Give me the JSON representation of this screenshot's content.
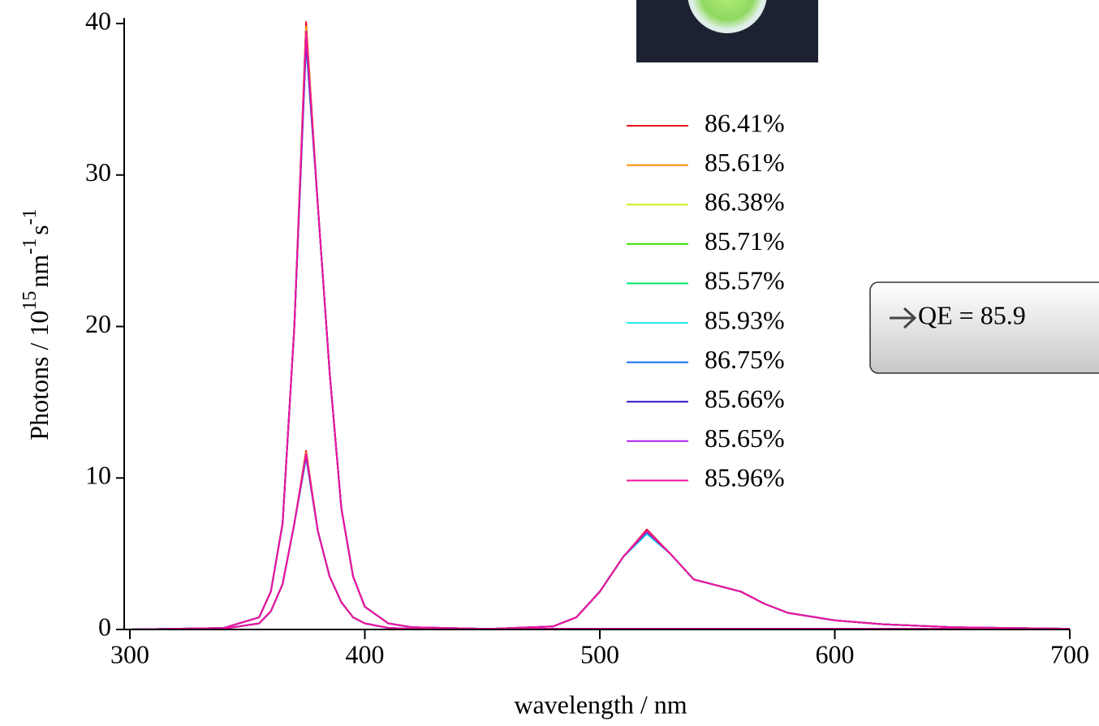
{
  "chart_data": {
    "type": "line",
    "xlabel": "wavelength / nm",
    "ylabel": [
      "Photons / 10",
      "15",
      "nm",
      "-1",
      "s",
      "-1"
    ],
    "annotation": "QE = 85.9",
    "x": [
      300,
      340,
      355,
      360,
      365,
      370,
      375,
      380,
      385,
      390,
      395,
      400,
      410,
      420,
      450,
      480,
      490,
      500,
      510,
      520,
      530,
      540,
      550,
      560,
      570,
      580,
      600,
      620,
      650,
      700
    ],
    "xlim": [
      300,
      700
    ],
    "xticks": [
      300,
      400,
      500,
      600,
      700
    ],
    "ylim": [
      0,
      40
    ],
    "yticks": [
      0,
      10,
      20,
      30,
      40
    ],
    "series": [
      {
        "name": "86.41%",
        "color": "#e8001c",
        "reference": [
          0,
          0.1,
          0.8,
          2.5,
          7,
          20,
          40.1,
          28,
          17,
          8,
          3.5,
          1.5,
          0.4,
          0.15,
          0.05,
          0.05,
          0.05,
          0.05,
          0.05,
          0.05,
          0.05,
          0.05,
          0.05,
          0.05,
          0.05,
          0.05,
          0.05,
          0.05,
          0.05,
          0.05
        ],
        "values": [
          0,
          0.05,
          0.4,
          1.2,
          3,
          7,
          11.8,
          6.5,
          3.5,
          1.8,
          0.8,
          0.4,
          0.1,
          0.05,
          0.02,
          0.2,
          0.8,
          2.5,
          4.8,
          6.6,
          5,
          3.3,
          2.9,
          2.5,
          1.7,
          1.1,
          0.6,
          0.35,
          0.15,
          0.05
        ]
      },
      {
        "name": "85.61%",
        "color": "#ff8c00",
        "reference": [
          0,
          0.1,
          0.8,
          2.5,
          7,
          20,
          39.8,
          28,
          17,
          8,
          3.5,
          1.5,
          0.4,
          0.15,
          0.05,
          0.05,
          0.05,
          0.05,
          0.05,
          0.05,
          0.05,
          0.05,
          0.05,
          0.05,
          0.05,
          0.05,
          0.05,
          0.05,
          0.05,
          0.05
        ],
        "values": [
          0,
          0.05,
          0.4,
          1.2,
          3,
          7,
          11.7,
          6.5,
          3.5,
          1.8,
          0.8,
          0.4,
          0.1,
          0.05,
          0.02,
          0.2,
          0.8,
          2.5,
          4.8,
          6.5,
          5,
          3.3,
          2.9,
          2.5,
          1.7,
          1.1,
          0.6,
          0.35,
          0.15,
          0.05
        ]
      },
      {
        "name": "86.38%",
        "color": "#c8f020",
        "reference": [
          0,
          0.1,
          0.8,
          2.5,
          7,
          20,
          39.6,
          28,
          17,
          8,
          3.5,
          1.5,
          0.4,
          0.15,
          0.05,
          0.05,
          0.05,
          0.05,
          0.05,
          0.05,
          0.05,
          0.05,
          0.05,
          0.05,
          0.05,
          0.05,
          0.05,
          0.05,
          0.05,
          0.05
        ],
        "values": [
          0,
          0.05,
          0.4,
          1.2,
          3,
          7,
          11.6,
          6.5,
          3.5,
          1.8,
          0.8,
          0.4,
          0.1,
          0.05,
          0.02,
          0.2,
          0.8,
          2.5,
          4.8,
          6.5,
          5,
          3.3,
          2.9,
          2.5,
          1.7,
          1.1,
          0.6,
          0.35,
          0.15,
          0.05
        ]
      },
      {
        "name": "85.71%",
        "color": "#33e000",
        "reference": [
          0,
          0.1,
          0.8,
          2.5,
          7,
          20,
          39.4,
          28,
          17,
          8,
          3.5,
          1.5,
          0.4,
          0.15,
          0.05,
          0.05,
          0.05,
          0.05,
          0.05,
          0.05,
          0.05,
          0.05,
          0.05,
          0.05,
          0.05,
          0.05,
          0.05,
          0.05,
          0.05,
          0.05
        ],
        "values": [
          0,
          0.05,
          0.4,
          1.2,
          3,
          7,
          11.6,
          6.5,
          3.5,
          1.8,
          0.8,
          0.4,
          0.1,
          0.05,
          0.02,
          0.2,
          0.8,
          2.5,
          4.8,
          6.5,
          5,
          3.3,
          2.9,
          2.5,
          1.7,
          1.1,
          0.6,
          0.35,
          0.15,
          0.05
        ]
      },
      {
        "name": "85.57%",
        "color": "#00e66b",
        "reference": [
          0,
          0.1,
          0.8,
          2.5,
          7,
          20,
          39.2,
          28,
          17,
          8,
          3.5,
          1.5,
          0.4,
          0.15,
          0.05,
          0.05,
          0.05,
          0.05,
          0.05,
          0.05,
          0.05,
          0.05,
          0.05,
          0.05,
          0.05,
          0.05,
          0.05,
          0.05,
          0.05,
          0.05
        ],
        "values": [
          0,
          0.05,
          0.4,
          1.2,
          3,
          7,
          11.5,
          6.5,
          3.5,
          1.8,
          0.8,
          0.4,
          0.1,
          0.05,
          0.02,
          0.2,
          0.8,
          2.5,
          4.8,
          6.4,
          5,
          3.3,
          2.9,
          2.5,
          1.7,
          1.1,
          0.6,
          0.35,
          0.15,
          0.05
        ]
      },
      {
        "name": "85.93%",
        "color": "#22e8f0",
        "reference": [
          0,
          0.1,
          0.8,
          2.5,
          7,
          20,
          38.6,
          28,
          17,
          8,
          3.5,
          1.5,
          0.4,
          0.15,
          0.05,
          0.05,
          0.05,
          0.05,
          0.05,
          0.05,
          0.05,
          0.05,
          0.05,
          0.05,
          0.05,
          0.05,
          0.05,
          0.05,
          0.05,
          0.05
        ],
        "values": [
          0,
          0.05,
          0.4,
          1.2,
          3,
          7,
          11.3,
          6.5,
          3.5,
          1.8,
          0.8,
          0.4,
          0.1,
          0.05,
          0.02,
          0.2,
          0.8,
          2.5,
          4.8,
          6.3,
          5,
          3.3,
          2.9,
          2.5,
          1.7,
          1.1,
          0.6,
          0.35,
          0.15,
          0.05
        ]
      },
      {
        "name": "86.75%",
        "color": "#1a6cf0",
        "reference": [
          0,
          0.1,
          0.8,
          2.5,
          7,
          20,
          38.8,
          28,
          17,
          8,
          3.5,
          1.5,
          0.4,
          0.15,
          0.05,
          0.05,
          0.05,
          0.05,
          0.05,
          0.05,
          0.05,
          0.05,
          0.05,
          0.05,
          0.05,
          0.05,
          0.05,
          0.05,
          0.05,
          0.05
        ],
        "values": [
          0,
          0.05,
          0.4,
          1.2,
          3,
          7,
          11.4,
          6.5,
          3.5,
          1.8,
          0.8,
          0.4,
          0.1,
          0.05,
          0.02,
          0.2,
          0.8,
          2.5,
          4.8,
          6.4,
          5,
          3.3,
          2.9,
          2.5,
          1.7,
          1.1,
          0.6,
          0.35,
          0.15,
          0.05
        ]
      },
      {
        "name": "85.66%",
        "color": "#3010c0",
        "reference": [
          0,
          0.1,
          0.8,
          2.5,
          7,
          20,
          39.0,
          28,
          17,
          8,
          3.5,
          1.5,
          0.4,
          0.15,
          0.05,
          0.05,
          0.05,
          0.05,
          0.05,
          0.05,
          0.05,
          0.05,
          0.05,
          0.05,
          0.05,
          0.05,
          0.05,
          0.05,
          0.05,
          0.05
        ],
        "values": [
          0,
          0.05,
          0.4,
          1.2,
          3,
          7,
          11.5,
          6.5,
          3.5,
          1.8,
          0.8,
          0.4,
          0.1,
          0.05,
          0.02,
          0.2,
          0.8,
          2.5,
          4.8,
          6.5,
          5,
          3.3,
          2.9,
          2.5,
          1.7,
          1.1,
          0.6,
          0.35,
          0.15,
          0.05
        ]
      },
      {
        "name": "85.65%",
        "color": "#b020f0",
        "reference": [
          0,
          0.1,
          0.8,
          2.5,
          7,
          20,
          39.3,
          28,
          17,
          8,
          3.5,
          1.5,
          0.4,
          0.15,
          0.05,
          0.05,
          0.05,
          0.05,
          0.05,
          0.05,
          0.05,
          0.05,
          0.05,
          0.05,
          0.05,
          0.05,
          0.05,
          0.05,
          0.05,
          0.05
        ],
        "values": [
          0,
          0.05,
          0.4,
          1.2,
          3,
          7,
          11.5,
          6.5,
          3.5,
          1.8,
          0.8,
          0.4,
          0.1,
          0.05,
          0.02,
          0.2,
          0.8,
          2.5,
          4.8,
          6.5,
          5,
          3.3,
          2.9,
          2.5,
          1.7,
          1.1,
          0.6,
          0.35,
          0.15,
          0.05
        ]
      },
      {
        "name": "85.96%",
        "color": "#f0149a",
        "reference": [
          0,
          0.1,
          0.8,
          2.5,
          7,
          20,
          39.5,
          28,
          17,
          8,
          3.5,
          1.5,
          0.4,
          0.15,
          0.05,
          0.05,
          0.05,
          0.05,
          0.05,
          0.05,
          0.05,
          0.05,
          0.05,
          0.05,
          0.05,
          0.05,
          0.05,
          0.05,
          0.05,
          0.05
        ],
        "values": [
          0,
          0.05,
          0.4,
          1.2,
          3,
          7,
          11.6,
          6.5,
          3.5,
          1.8,
          0.8,
          0.4,
          0.1,
          0.05,
          0.02,
          0.2,
          0.8,
          2.5,
          4.8,
          6.5,
          5,
          3.3,
          2.9,
          2.5,
          1.7,
          1.1,
          0.6,
          0.35,
          0.15,
          0.05
        ]
      }
    ]
  }
}
